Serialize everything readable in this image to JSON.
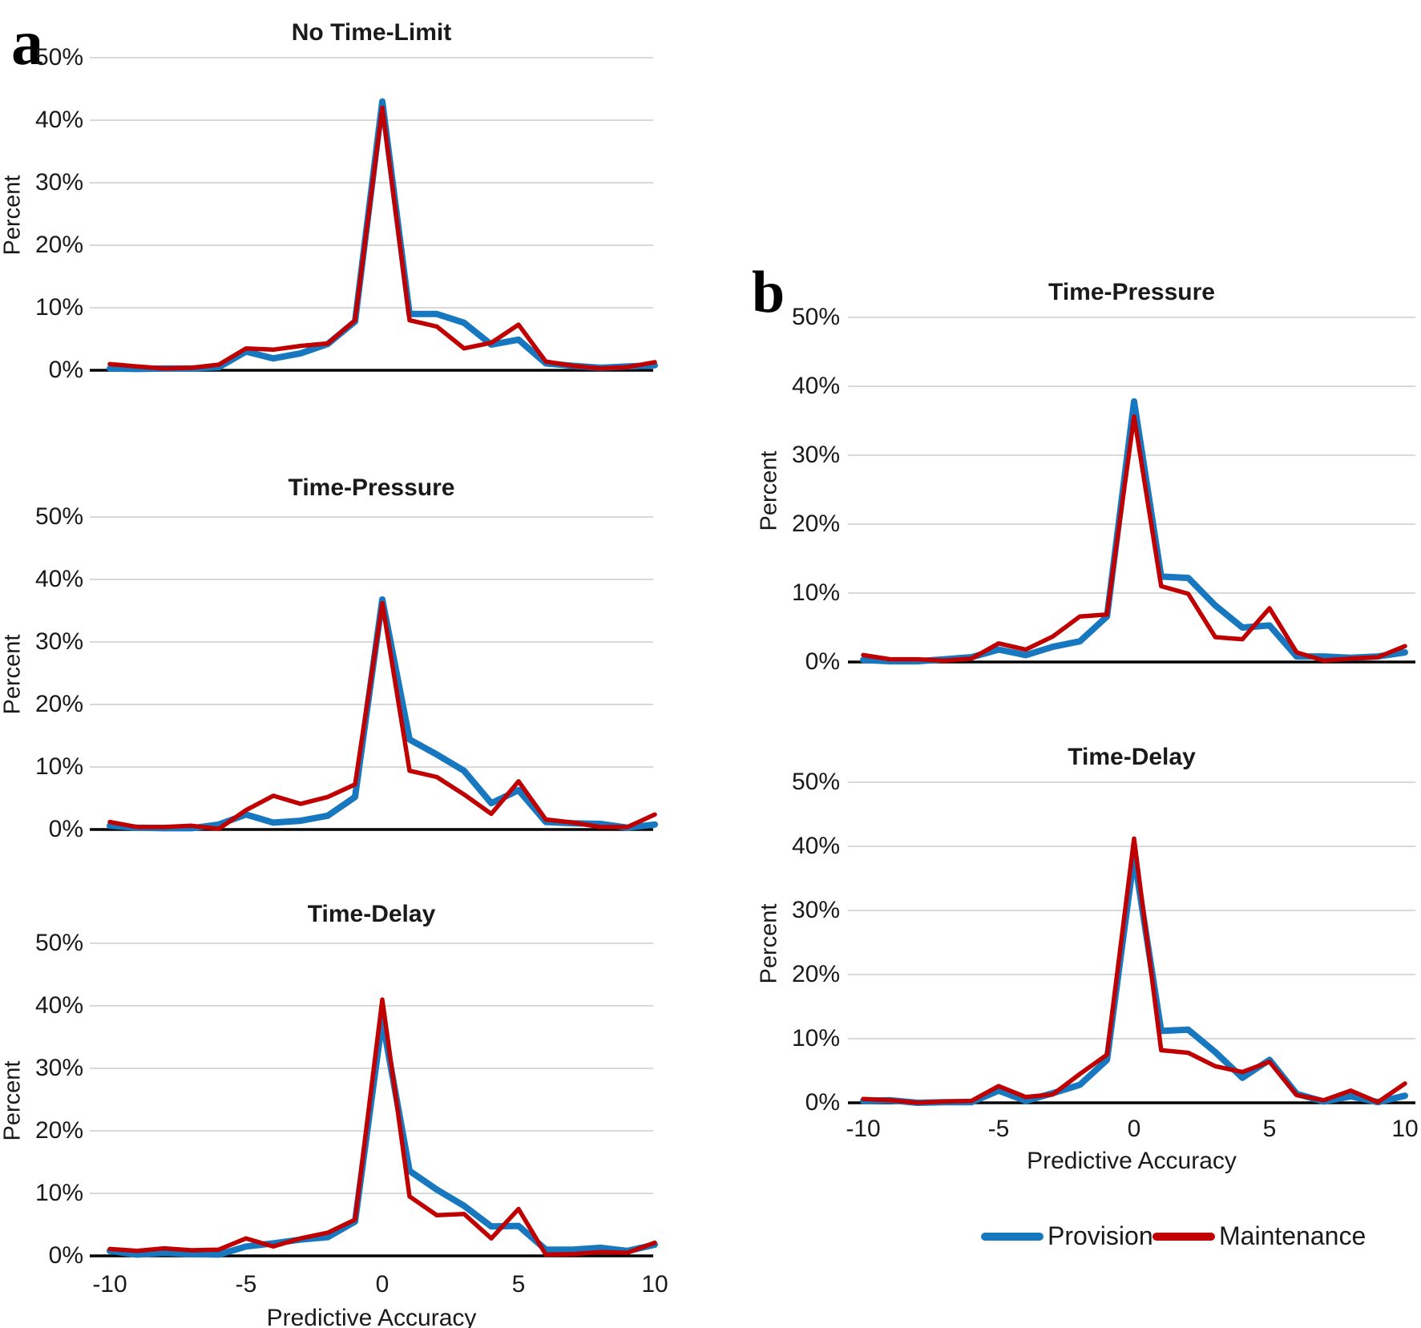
{
  "figure": {
    "panels": {
      "a": "a",
      "b": "b"
    },
    "y_axis_title": "Percent",
    "x_axis_title": "Predictive Accuracy",
    "y_tick_labels": [
      "50%",
      "40%",
      "30%",
      "20%",
      "10%",
      "0%"
    ],
    "x_tick_labels": [
      "-10",
      "-5",
      "0",
      "5",
      "10"
    ],
    "x_tick_values": [
      -10,
      -5,
      0,
      5,
      10
    ]
  },
  "legend": {
    "provision": {
      "label": "Provision",
      "color": "#1878BF"
    },
    "maintenance": {
      "label": "Maintenance",
      "color": "#C00000"
    }
  },
  "colors": {
    "provision_line": "#1878BF",
    "maintenance_line": "#C00000",
    "gridline": "#D9D9D9",
    "axis_line": "#000000"
  },
  "chart_data": [
    {
      "type": "line",
      "panel": "a",
      "title": "No Time-Limit",
      "xlabel": "Predictive Accuracy",
      "ylabel": "Percent",
      "ylim": [
        0,
        50
      ],
      "x": [
        -10,
        -9,
        -8,
        -7,
        -6,
        -5,
        -4,
        -3,
        -2,
        -1,
        0,
        1,
        2,
        3,
        4,
        5,
        6,
        7,
        8,
        9,
        10
      ],
      "series": [
        {
          "name": "Provision",
          "color": "#1878BF",
          "values": [
            0.3,
            0.2,
            0.3,
            0.3,
            0.5,
            3.0,
            1.9,
            2.7,
            4.2,
            7.8,
            43.0,
            9.0,
            9.0,
            7.6,
            4.1,
            4.9,
            1.1,
            0.7,
            0.4,
            0.6,
            0.8
          ]
        },
        {
          "name": "Maintenance",
          "color": "#C00000",
          "values": [
            1.0,
            0.6,
            0.3,
            0.4,
            0.9,
            3.5,
            3.3,
            3.9,
            4.3,
            8.0,
            42.0,
            8.0,
            7.0,
            3.5,
            4.4,
            7.3,
            1.4,
            0.7,
            0.3,
            0.5,
            1.3
          ]
        }
      ]
    },
    {
      "type": "line",
      "panel": "a",
      "title": "Time-Pressure",
      "xlabel": "Predictive Accuracy",
      "ylabel": "Percent",
      "ylim": [
        0,
        50
      ],
      "x": [
        -10,
        -9,
        -8,
        -7,
        -6,
        -5,
        -4,
        -3,
        -2,
        -1,
        0,
        1,
        2,
        3,
        4,
        5,
        6,
        7,
        8,
        9,
        10
      ],
      "series": [
        {
          "name": "Provision",
          "color": "#1878BF",
          "values": [
            0.6,
            0.3,
            0.2,
            0.2,
            0.8,
            2.4,
            1.1,
            1.4,
            2.2,
            5.2,
            36.8,
            14.4,
            12.0,
            9.4,
            4.2,
            6.3,
            1.2,
            1.0,
            0.9,
            0.3,
            0.8
          ]
        },
        {
          "name": "Maintenance",
          "color": "#C00000",
          "values": [
            1.2,
            0.4,
            0.4,
            0.6,
            0.1,
            3.1,
            5.4,
            4.1,
            5.2,
            7.2,
            36.2,
            9.4,
            8.4,
            5.6,
            2.5,
            7.7,
            1.6,
            1.1,
            0.4,
            0.4,
            2.4
          ]
        }
      ]
    },
    {
      "type": "line",
      "panel": "a",
      "title": "Time-Delay",
      "xlabel": "Predictive Accuracy",
      "ylabel": "Percent",
      "ylim": [
        0,
        50
      ],
      "x": [
        -10,
        -9,
        -8,
        -7,
        -6,
        -5,
        -4,
        -3,
        -2,
        -1,
        0,
        1,
        2,
        3,
        4,
        5,
        6,
        7,
        8,
        9,
        10
      ],
      "series": [
        {
          "name": "Provision",
          "color": "#1878BF",
          "values": [
            0.8,
            0.2,
            0.5,
            0.3,
            0.2,
            1.5,
            2.0,
            2.6,
            3.0,
            5.5,
            37.8,
            13.6,
            10.6,
            8.0,
            4.7,
            4.8,
            1.0,
            1.0,
            1.3,
            0.8,
            1.8
          ]
        },
        {
          "name": "Maintenance",
          "color": "#C00000",
          "values": [
            1.1,
            0.8,
            1.2,
            0.9,
            1.0,
            2.8,
            1.5,
            2.8,
            3.7,
            5.8,
            41.0,
            9.5,
            6.5,
            6.7,
            2.8,
            7.5,
            0.2,
            0.3,
            0.6,
            0.5,
            2.1
          ]
        }
      ]
    },
    {
      "type": "line",
      "panel": "b",
      "title": "Time-Pressure",
      "xlabel": "Predictive Accuracy",
      "ylabel": "Percent",
      "ylim": [
        0,
        50
      ],
      "x": [
        -10,
        -9,
        -8,
        -7,
        -6,
        -5,
        -4,
        -3,
        -2,
        -1,
        0,
        1,
        2,
        3,
        4,
        5,
        6,
        7,
        8,
        9,
        10
      ],
      "series": [
        {
          "name": "Provision",
          "color": "#1878BF",
          "values": [
            0.3,
            0.1,
            0.1,
            0.4,
            0.7,
            1.8,
            1.0,
            2.2,
            3.0,
            6.6,
            37.8,
            12.4,
            12.2,
            8.2,
            5.0,
            5.3,
            0.8,
            0.8,
            0.6,
            0.8,
            1.4
          ]
        },
        {
          "name": "Maintenance",
          "color": "#C00000",
          "values": [
            1.0,
            0.4,
            0.4,
            0.2,
            0.5,
            2.7,
            1.8,
            3.7,
            6.6,
            6.9,
            35.6,
            11.0,
            9.9,
            3.6,
            3.3,
            7.8,
            1.4,
            0.2,
            0.5,
            0.7,
            2.3
          ]
        }
      ]
    },
    {
      "type": "line",
      "panel": "b",
      "title": "Time-Delay",
      "xlabel": "Predictive Accuracy",
      "ylabel": "Percent",
      "ylim": [
        0,
        50
      ],
      "x": [
        -10,
        -9,
        -8,
        -7,
        -6,
        -5,
        -4,
        -3,
        -2,
        -1,
        0,
        1,
        2,
        3,
        4,
        5,
        6,
        7,
        8,
        9,
        10
      ],
      "series": [
        {
          "name": "Provision",
          "color": "#1878BF",
          "values": [
            0.3,
            0.4,
            0.0,
            0.1,
            0.1,
            1.9,
            0.3,
            1.5,
            2.8,
            6.7,
            38.5,
            11.2,
            11.4,
            7.9,
            3.9,
            6.7,
            1.4,
            0.2,
            1.0,
            0.1,
            1.1
          ]
        },
        {
          "name": "Maintenance",
          "color": "#C00000",
          "values": [
            0.6,
            0.4,
            0.0,
            0.2,
            0.3,
            2.6,
            0.9,
            1.3,
            4.5,
            7.5,
            41.2,
            8.2,
            7.8,
            5.7,
            4.8,
            6.4,
            1.2,
            0.4,
            1.9,
            0.1,
            3.0
          ]
        }
      ]
    }
  ]
}
